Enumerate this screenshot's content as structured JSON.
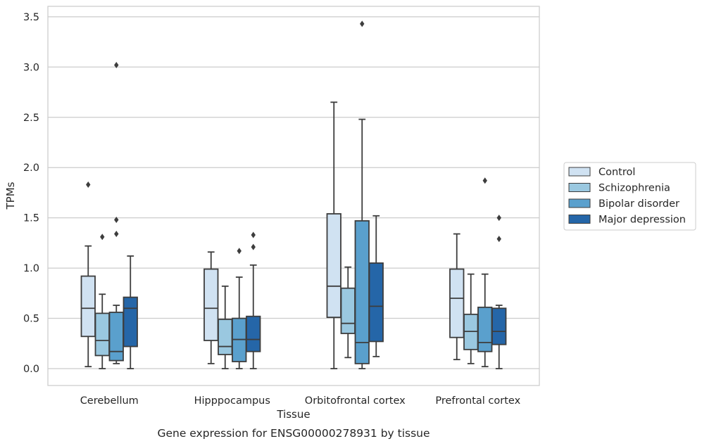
{
  "chart_data": {
    "type": "box",
    "title": "",
    "caption": "Gene expression for ENSG00000278931 by tissue",
    "xlabel": "Tissue",
    "ylabel": "TPMs",
    "ylim": [
      -0.16,
      3.6
    ],
    "yticks": [
      "0.0",
      "0.5",
      "1.0",
      "1.5",
      "2.0",
      "2.5",
      "3.0",
      "3.5"
    ],
    "grid": "horizontal",
    "legend_position": "right",
    "categories": [
      "Cerebellum",
      "Hipppocampus",
      "Orbitofrontal cortex",
      "Prefrontal cortex"
    ],
    "series": [
      {
        "name": "Control",
        "color": "#d0e2f2",
        "boxes": [
          {
            "whislo": 0.02,
            "q1": 0.32,
            "med": 0.6,
            "q3": 0.92,
            "whishi": 1.22,
            "fliers": [
              1.83
            ]
          },
          {
            "whislo": 0.05,
            "q1": 0.28,
            "med": 0.6,
            "q3": 0.99,
            "whishi": 1.16,
            "fliers": []
          },
          {
            "whislo": 0.0,
            "q1": 0.51,
            "med": 0.82,
            "q3": 1.54,
            "whishi": 2.65,
            "fliers": []
          },
          {
            "whislo": 0.09,
            "q1": 0.31,
            "med": 0.7,
            "q3": 0.99,
            "whishi": 1.34,
            "fliers": []
          }
        ]
      },
      {
        "name": "Schizophrenia",
        "color": "#9ac8e0",
        "boxes": [
          {
            "whislo": 0.0,
            "q1": 0.13,
            "med": 0.28,
            "q3": 0.55,
            "whishi": 0.74,
            "fliers": [
              1.31
            ]
          },
          {
            "whislo": 0.0,
            "q1": 0.14,
            "med": 0.22,
            "q3": 0.49,
            "whishi": 0.82,
            "fliers": []
          },
          {
            "whislo": 0.11,
            "q1": 0.35,
            "med": 0.45,
            "q3": 0.8,
            "whishi": 1.01,
            "fliers": []
          },
          {
            "whislo": 0.05,
            "q1": 0.19,
            "med": 0.37,
            "q3": 0.54,
            "whishi": 0.94,
            "fliers": []
          }
        ]
      },
      {
        "name": "Bipolar disorder",
        "color": "#5aa0cd",
        "boxes": [
          {
            "whislo": 0.05,
            "q1": 0.08,
            "med": 0.17,
            "q3": 0.56,
            "whishi": 0.63,
            "fliers": [
              1.34,
              1.48,
              3.02
            ]
          },
          {
            "whislo": 0.0,
            "q1": 0.07,
            "med": 0.29,
            "q3": 0.5,
            "whishi": 0.91,
            "fliers": [
              1.17
            ]
          },
          {
            "whislo": 0.0,
            "q1": 0.05,
            "med": 0.26,
            "q3": 1.47,
            "whishi": 2.48,
            "fliers": [
              3.43
            ]
          },
          {
            "whislo": 0.02,
            "q1": 0.17,
            "med": 0.26,
            "q3": 0.61,
            "whishi": 0.94,
            "fliers": [
              1.87
            ]
          }
        ]
      },
      {
        "name": "Major depression",
        "color": "#2566a8",
        "boxes": [
          {
            "whislo": 0.0,
            "q1": 0.22,
            "med": 0.6,
            "q3": 0.71,
            "whishi": 1.12,
            "fliers": []
          },
          {
            "whislo": 0.0,
            "q1": 0.17,
            "med": 0.29,
            "q3": 0.52,
            "whishi": 1.03,
            "fliers": [
              1.21,
              1.33
            ]
          },
          {
            "whislo": 0.12,
            "q1": 0.27,
            "med": 0.62,
            "q3": 1.05,
            "whishi": 1.52,
            "fliers": []
          },
          {
            "whislo": 0.0,
            "q1": 0.24,
            "med": 0.37,
            "q3": 0.6,
            "whishi": 0.63,
            "fliers": [
              1.29,
              1.5
            ]
          }
        ]
      }
    ]
  }
}
